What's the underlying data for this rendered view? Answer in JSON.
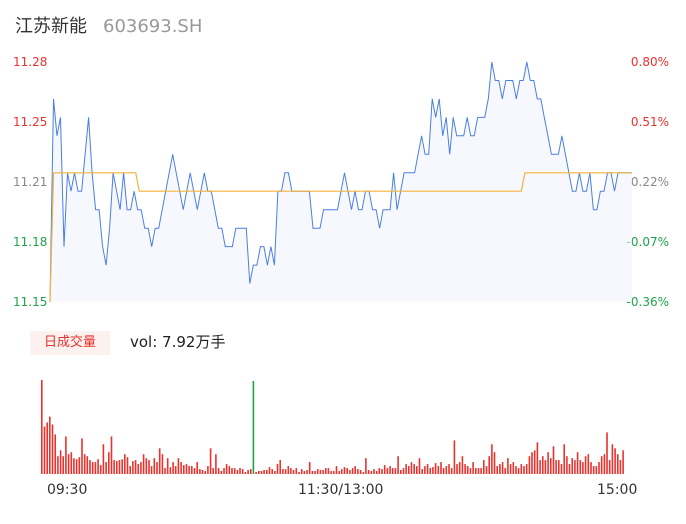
{
  "header": {
    "name": "江苏新能",
    "code": "603693.SH"
  },
  "colors": {
    "up": "#e8322e",
    "down": "#1fa34a",
    "neutral": "#888888",
    "price_line": "#4a7fe0",
    "avg_line": "#f5b23c",
    "badge_bg": "#fdf1ef"
  },
  "volume": {
    "badge": "日成交量",
    "summary": "vol: 7.92万手"
  },
  "chart_data": [
    {
      "type": "line",
      "title": "",
      "ylim": [
        11.15,
        11.28
      ],
      "y_ticks": [
        "11.28",
        "11.25",
        "11.21",
        "11.18",
        "11.15"
      ],
      "y_ticks_right": [
        "0.80%",
        "0.51%",
        "0.22%",
        "-0.07%",
        "-0.36%"
      ],
      "x_ticks": [
        "09:30",
        "11:30/13:00",
        "15:00"
      ],
      "series": [
        {
          "values": [
            11.15,
            11.26,
            11.24,
            11.25,
            11.18,
            11.22,
            11.21,
            11.22,
            11.21,
            11.21,
            11.23,
            11.25,
            11.22,
            11.2,
            11.2,
            11.18,
            11.17,
            11.19,
            11.22,
            11.21,
            11.2,
            11.22,
            11.2,
            11.2,
            11.21,
            11.2,
            11.2,
            11.19,
            11.19,
            11.18,
            11.19,
            11.19,
            11.2,
            11.21,
            11.22,
            11.23,
            11.22,
            11.21,
            11.2,
            11.21,
            11.22,
            11.21,
            11.2,
            11.21,
            11.22,
            11.21,
            11.21,
            11.2,
            11.19,
            11.19,
            11.18,
            11.18,
            11.18,
            11.19,
            11.19,
            11.19,
            11.19,
            11.16,
            11.17,
            11.17,
            11.18,
            11.18,
            11.17,
            11.18,
            11.17,
            11.21,
            11.21,
            11.22,
            11.22,
            11.21,
            11.21,
            11.21,
            11.21,
            11.21,
            11.21,
            11.19,
            11.19,
            11.19,
            11.2,
            11.2,
            11.2,
            11.2,
            11.2,
            11.21,
            11.22,
            11.21,
            11.2,
            11.21,
            11.2,
            11.2,
            11.21,
            11.21,
            11.2,
            11.2,
            11.19,
            11.2,
            11.2,
            11.2,
            11.22,
            11.2,
            11.21,
            11.22,
            11.22,
            11.22,
            11.22,
            11.23,
            11.24,
            11.23,
            11.23,
            11.26,
            11.25,
            11.26,
            11.24,
            11.25,
            11.23,
            11.25,
            11.24,
            11.24,
            11.24,
            11.25,
            11.24,
            11.24,
            11.25,
            11.25,
            11.25,
            11.26,
            11.28,
            11.27,
            11.27,
            11.26,
            11.27,
            11.27,
            11.27,
            11.26,
            11.27,
            11.27,
            11.28,
            11.27,
            11.27,
            11.26,
            11.26,
            11.25,
            11.24,
            11.23,
            11.23,
            11.23,
            11.24,
            11.23,
            11.22,
            11.21,
            11.21,
            11.22,
            11.21,
            11.21,
            11.22,
            11.2,
            11.2,
            11.21,
            11.21,
            11.22,
            11.22,
            11.21,
            11.22,
            11.22,
            11.22,
            11.22,
            11.22
          ]
        },
        {
          "values": [
            11.15,
            11.22,
            11.22,
            11.22,
            11.22,
            11.22,
            11.22,
            11.22,
            11.22,
            11.22,
            11.22,
            11.22,
            11.22,
            11.22,
            11.22,
            11.22,
            11.22,
            11.22,
            11.22,
            11.22,
            11.22,
            11.22,
            11.22,
            11.22,
            11.22,
            11.21,
            11.21,
            11.21,
            11.21,
            11.21,
            11.21,
            11.21,
            11.21,
            11.21,
            11.21,
            11.21,
            11.21,
            11.21,
            11.21,
            11.21,
            11.21,
            11.21,
            11.21,
            11.21,
            11.21,
            11.21,
            11.21,
            11.21,
            11.21,
            11.21,
            11.21,
            11.21,
            11.21,
            11.21,
            11.21,
            11.21,
            11.21,
            11.21,
            11.21,
            11.21,
            11.21,
            11.21,
            11.21,
            11.21,
            11.21,
            11.21,
            11.21,
            11.21,
            11.21,
            11.21,
            11.21,
            11.21,
            11.21,
            11.21,
            11.21,
            11.21,
            11.21,
            11.21,
            11.21,
            11.21,
            11.21,
            11.21,
            11.21,
            11.21,
            11.21,
            11.21,
            11.21,
            11.21,
            11.21,
            11.21,
            11.21,
            11.21,
            11.21,
            11.21,
            11.21,
            11.21,
            11.21,
            11.21,
            11.21,
            11.21,
            11.21,
            11.21,
            11.21,
            11.21,
            11.21,
            11.21,
            11.21,
            11.21,
            11.21,
            11.21,
            11.21,
            11.21,
            11.21,
            11.21,
            11.21,
            11.21,
            11.21,
            11.21,
            11.21,
            11.21,
            11.21,
            11.21,
            11.21,
            11.21,
            11.21,
            11.21,
            11.21,
            11.21,
            11.21,
            11.21,
            11.21,
            11.21,
            11.21,
            11.22,
            11.22,
            11.22,
            11.22,
            11.22,
            11.22,
            11.22,
            11.22,
            11.22,
            11.22,
            11.22,
            11.22,
            11.22,
            11.22,
            11.22,
            11.22,
            11.22,
            11.22,
            11.22,
            11.22,
            11.22,
            11.22,
            11.22,
            11.22,
            11.22,
            11.22,
            11.22,
            11.22,
            11.22,
            11.22,
            11.22
          ]
        }
      ]
    },
    {
      "type": "bar",
      "title": "",
      "values": [
        95,
        48,
        52,
        58,
        50,
        40,
        18,
        24,
        18,
        38,
        20,
        22,
        16,
        15,
        17,
        36,
        20,
        18,
        14,
        12,
        12,
        15,
        9,
        30,
        12,
        22,
        38,
        14,
        13,
        14,
        15,
        20,
        17,
        8,
        13,
        14,
        10,
        12,
        20,
        16,
        14,
        8,
        16,
        12,
        26,
        20,
        6,
        16,
        7,
        12,
        8,
        16,
        12,
        9,
        10,
        8,
        8,
        6,
        12,
        5,
        4,
        3,
        8,
        26,
        6,
        20,
        6,
        3,
        6,
        10,
        8,
        6,
        6,
        4,
        6,
        5,
        2,
        4,
        5,
        94,
        2,
        3,
        3,
        4,
        4,
        7,
        5,
        3,
        10,
        14,
        5,
        5,
        8,
        6,
        4,
        6,
        2,
        5,
        3,
        4,
        12,
        3,
        3,
        5,
        4,
        4,
        6,
        6,
        3,
        3,
        8,
        3,
        5,
        7,
        6,
        4,
        6,
        8,
        5,
        4,
        2,
        16,
        4,
        3,
        5,
        3,
        6,
        5,
        9,
        6,
        8,
        6,
        6,
        18,
        4,
        6,
        10,
        8,
        12,
        10,
        8,
        16,
        5,
        8,
        10,
        6,
        7,
        11,
        8,
        12,
        6,
        8,
        10,
        6,
        34,
        10,
        12,
        18,
        10,
        8,
        6,
        12,
        6,
        6,
        6,
        14,
        8,
        18,
        30,
        22,
        8,
        10,
        12,
        6,
        16,
        10,
        12,
        8,
        6,
        10,
        8,
        10,
        18,
        22,
        24,
        32,
        14,
        18,
        14,
        22,
        16,
        28,
        14,
        14,
        10,
        30,
        18,
        10,
        16,
        14,
        22,
        14,
        12,
        18,
        20,
        12,
        8,
        8,
        12,
        18,
        20,
        42,
        14,
        30,
        26,
        20,
        14,
        24
      ],
      "colors": [
        "red",
        "red",
        "red",
        "red",
        "red",
        "red",
        "red",
        "red",
        "red",
        "red",
        "red",
        "red",
        "red",
        "red",
        "red",
        "red",
        "red",
        "red",
        "red",
        "red",
        "red",
        "red",
        "red",
        "red",
        "red",
        "red",
        "red",
        "red",
        "red",
        "red",
        "red",
        "red",
        "red",
        "red",
        "red",
        "red",
        "red",
        "red",
        "red",
        "red",
        "red",
        "red",
        "red",
        "red",
        "red",
        "red",
        "red",
        "red",
        "red",
        "red",
        "red",
        "red",
        "red",
        "red",
        "red",
        "red",
        "red",
        "red",
        "red",
        "red",
        "red",
        "red",
        "red",
        "red",
        "red",
        "red",
        "red",
        "red",
        "red",
        "red",
        "red",
        "red",
        "red",
        "red",
        "red",
        "red",
        "red",
        "red",
        "red",
        "green",
        "red",
        "red",
        "red",
        "red",
        "red",
        "red",
        "red",
        "red",
        "red",
        "red",
        "red",
        "red",
        "red",
        "red",
        "red",
        "red",
        "red",
        "red",
        "red",
        "red",
        "red",
        "red",
        "red",
        "red",
        "red",
        "red",
        "red",
        "red",
        "red",
        "red",
        "red",
        "red",
        "red",
        "red",
        "red",
        "red",
        "red",
        "red",
        "red",
        "red",
        "red",
        "red",
        "red",
        "red",
        "red",
        "red",
        "red",
        "red",
        "red",
        "red",
        "red",
        "red",
        "red",
        "red",
        "red",
        "red",
        "red",
        "red",
        "red",
        "red",
        "red",
        "red",
        "red",
        "red",
        "red",
        "red",
        "red",
        "red",
        "red",
        "red",
        "red",
        "red",
        "red",
        "red",
        "red",
        "red",
        "red",
        "red",
        "red",
        "red",
        "red",
        "red",
        "red",
        "red",
        "red",
        "red",
        "red",
        "red",
        "red",
        "red",
        "red",
        "red",
        "red",
        "red",
        "red",
        "red",
        "red",
        "red",
        "red",
        "red",
        "red",
        "red",
        "red",
        "red",
        "red",
        "red",
        "red",
        "red",
        "red",
        "red",
        "red",
        "red",
        "red",
        "red",
        "red",
        "red",
        "red",
        "red",
        "red",
        "red",
        "red",
        "red",
        "red",
        "red",
        "red",
        "red",
        "red",
        "red",
        "red",
        "red",
        "red",
        "red"
      ]
    }
  ]
}
